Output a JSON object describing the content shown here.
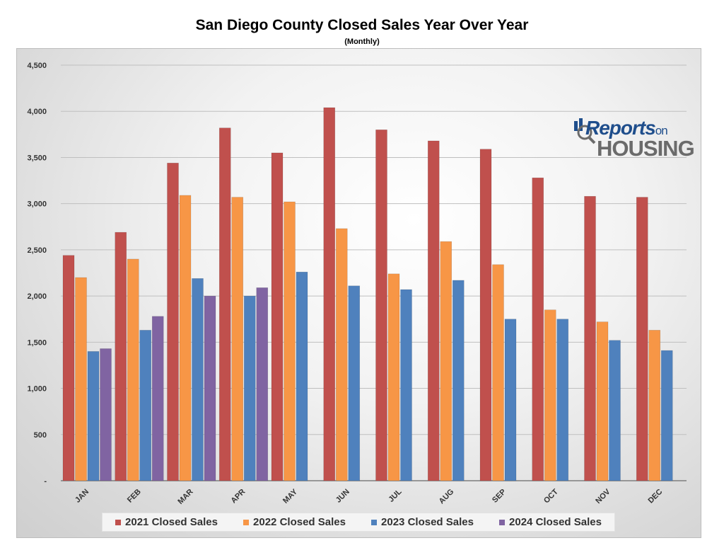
{
  "chart_data": {
    "type": "bar",
    "title": "San Diego County Closed Sales Year Over Year",
    "subtitle": "(Monthly)",
    "categories": [
      "JAN",
      "FEB",
      "MAR",
      "APR",
      "MAY",
      "JUN",
      "JUL",
      "AUG",
      "SEP",
      "OCT",
      "NOV",
      "DEC"
    ],
    "series": [
      {
        "name": "2021 Closed Sales",
        "color": "#c0504d",
        "values": [
          2440,
          2690,
          3440,
          3820,
          3550,
          4040,
          3800,
          3680,
          3590,
          3280,
          3080,
          3070
        ]
      },
      {
        "name": "2022 Closed Sales",
        "color": "#f79646",
        "values": [
          2200,
          2400,
          3090,
          3070,
          3020,
          2730,
          2240,
          2590,
          2340,
          1850,
          1720,
          1630
        ]
      },
      {
        "name": "2023 Closed Sales",
        "color": "#4f81bd",
        "values": [
          1400,
          1630,
          2190,
          2000,
          2260,
          2110,
          2070,
          2170,
          1750,
          1750,
          1520,
          1410
        ]
      },
      {
        "name": "2024 Closed Sales",
        "color": "#8064a2",
        "values": [
          1430,
          1780,
          2000,
          2090,
          null,
          null,
          null,
          null,
          null,
          null,
          null,
          null
        ]
      }
    ],
    "ylim": [
      0,
      4500
    ],
    "yticks": [
      0,
      500,
      1000,
      1500,
      2000,
      2500,
      3000,
      3500,
      4000,
      4500
    ],
    "ytick_labels": [
      "-",
      "500",
      "1,000",
      "1,500",
      "2,000",
      "2,500",
      "3,000",
      "3,500",
      "4,000",
      "4,500"
    ],
    "grid": true,
    "legend": "bottom"
  },
  "logo": {
    "word1": "Reports",
    "word2": "on",
    "word3": "HOUSING"
  }
}
